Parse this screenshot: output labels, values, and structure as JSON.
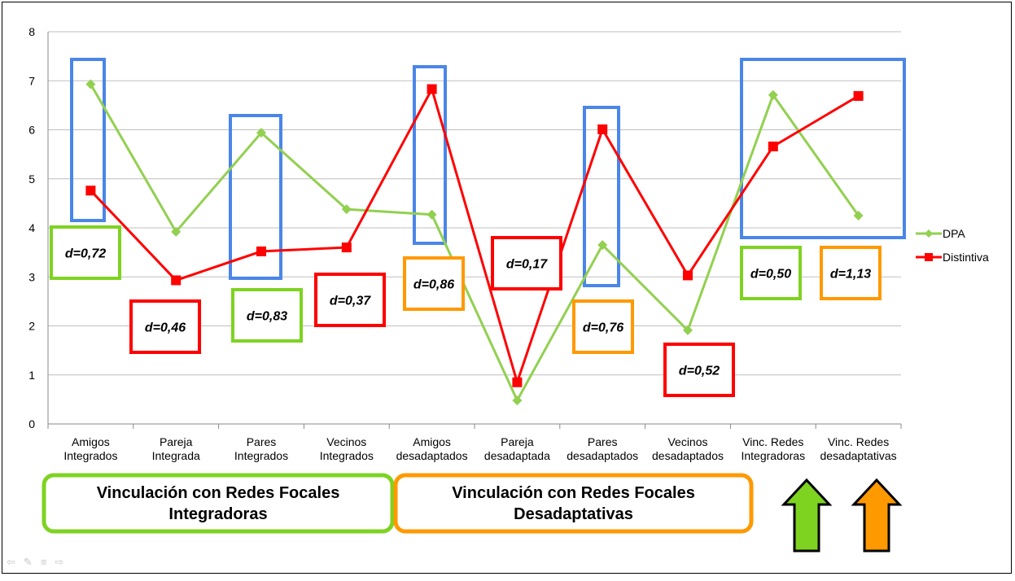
{
  "chart_data": {
    "type": "line",
    "categories": [
      [
        "Amigos",
        "Integrados"
      ],
      [
        "Pareja",
        "Integrada"
      ],
      [
        "Pares",
        "Integrados"
      ],
      [
        "Vecinos",
        "Integrados"
      ],
      [
        "Amigos",
        "desadaptados"
      ],
      [
        "Pareja",
        "desadaptada"
      ],
      [
        "Pares",
        "desadaptados"
      ],
      [
        "Vecinos",
        "desadaptados"
      ],
      [
        "Vinc. Redes",
        "Integradoras"
      ],
      [
        "Vinc. Redes",
        "desadaptativas"
      ]
    ],
    "ylim": [
      0,
      8
    ],
    "yticks": [
      "0",
      "1",
      "2",
      "3",
      "4",
      "5",
      "6",
      "7",
      "8"
    ],
    "grid": true,
    "legend_position": "right",
    "series": [
      {
        "name": "DPA",
        "color": "#92D050",
        "marker": "diamond",
        "values": [
          6.93,
          3.92,
          5.94,
          4.38,
          4.27,
          0.48,
          3.65,
          1.91,
          6.71,
          4.25
        ]
      },
      {
        "name": "Distintiva",
        "color": "#FF0000",
        "marker": "square",
        "values": [
          4.76,
          2.93,
          3.52,
          3.6,
          6.83,
          0.85,
          6.01,
          3.03,
          5.66,
          6.69
        ]
      }
    ],
    "effect_sizes": [
      {
        "text": "d=0,72",
        "color": "#7ED321"
      },
      {
        "text": "d=0,46",
        "color": "#FF0000"
      },
      {
        "text": "d=0,83",
        "color": "#7ED321"
      },
      {
        "text": "d=0,37",
        "color": "#FF0000"
      },
      {
        "text": "d=0,86",
        "color": "#FF9900"
      },
      {
        "text": "d=0,17",
        "color": "#FF0000"
      },
      {
        "text": "d=0,76",
        "color": "#FF9900"
      },
      {
        "text": "d=0,52",
        "color": "#FF0000"
      },
      {
        "text": "d=0,50",
        "color": "#7ED321"
      },
      {
        "text": "d=1,13",
        "color": "#FF9900"
      }
    ],
    "highlight_color": "#4A86E8",
    "groups": [
      {
        "label": [
          "Vinculación con Redes Focales",
          "Integradoras"
        ],
        "color": "#7ED321"
      },
      {
        "label": [
          "Vinculación con Redes Focales",
          "Desadaptativas"
        ],
        "color": "#FF9900"
      }
    ],
    "arrows": [
      {
        "color": "#7ED321"
      },
      {
        "color": "#FF9900"
      }
    ]
  },
  "nav": {
    "prev": "⇦",
    "edit": "✎",
    "menu": "≡",
    "next": "⇨"
  }
}
